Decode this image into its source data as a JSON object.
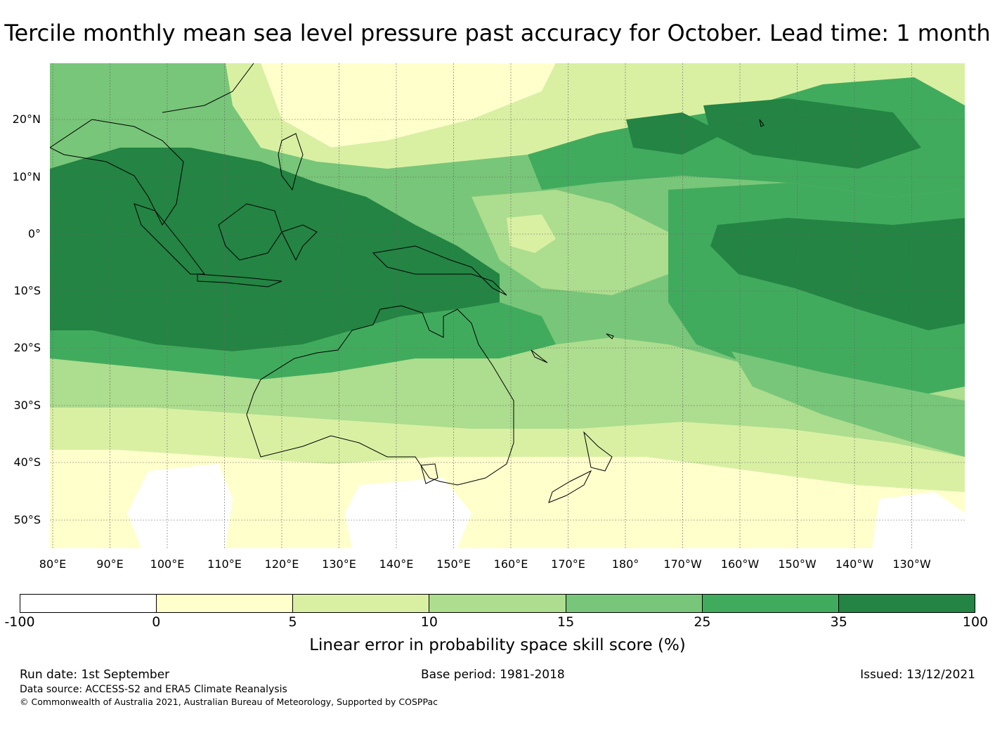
{
  "title": "Tercile monthly mean sea level pressure past accuracy for October. Lead time: 1 month",
  "map": {
    "lon_labels": [
      "80°E",
      "90°E",
      "100°E",
      "110°E",
      "120°E",
      "130°E",
      "140°E",
      "150°E",
      "160°E",
      "170°E",
      "180°",
      "170°W",
      "160°W",
      "150°W",
      "140°W",
      "130°W"
    ],
    "lat_labels": [
      "20°N",
      "10°N",
      "0°",
      "10°S",
      "20°S",
      "30°S",
      "40°S",
      "50°S"
    ],
    "colors": {
      "land_outline": "#000000",
      "gridline": "#666666"
    }
  },
  "colorbar": {
    "ticks": [
      "-100",
      "0",
      "5",
      "10",
      "15",
      "25",
      "35",
      "100"
    ],
    "colors": [
      "#ffffff",
      "#ffffcc",
      "#d9f0a3",
      "#addd8e",
      "#78c679",
      "#41ab5d",
      "#238443"
    ],
    "label": "Linear error in probability space skill score (%)"
  },
  "footer": {
    "run_date": "Run date: 1st September",
    "base_period": "Base period: 1981-2018",
    "issued": "Issued: 13/12/2021",
    "data_source": "Data source: ACCESS-S2 and ERA5 Climate Reanalysis",
    "copyright": "© Commonwealth of Australia 2021, Australian Bureau of Meteorology, Supported by COSPPac"
  }
}
